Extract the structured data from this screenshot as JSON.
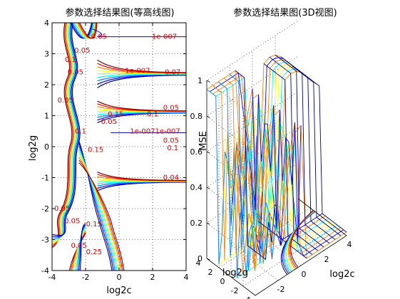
{
  "figure": {
    "left_title": "参数选择结果图(等高线图)",
    "right_title": "参数选择结果图(3D视图)"
  },
  "chart_data": [
    {
      "type": "contour",
      "title": "参数选择结果图(等高线图)",
      "xlabel": "log2c",
      "ylabel": "log2g",
      "xlim": [
        -4,
        4
      ],
      "ylim": [
        -4,
        4
      ],
      "xticks": [
        "-4",
        "-2",
        "0",
        "2",
        "4"
      ],
      "yticks": [
        "4",
        "3",
        "2",
        "1",
        "0",
        "-1",
        "-2",
        "-3",
        "-4"
      ],
      "grid": true,
      "colormap": [
        "#00008f",
        "#0000ff",
        "#0080ff",
        "#00ffff",
        "#80ff80",
        "#ffff00",
        "#ff8000",
        "#ff0000",
        "#800000"
      ],
      "level_labels": [
        {
          "text": "1e-007",
          "x": 2.7,
          "y": 3.55
        },
        {
          "text": "0.05",
          "x": -1.2,
          "y": 3.55
        },
        {
          "text": "0.05",
          "x": -2.2,
          "y": 3.1
        },
        {
          "text": "0.1",
          "x": -2.9,
          "y": 2.8
        },
        {
          "text": "1e-007",
          "x": 1.1,
          "y": 2.45
        },
        {
          "text": "0.07",
          "x": 3.2,
          "y": 2.4
        },
        {
          "text": "0.05",
          "x": -2.6,
          "y": 2.4
        },
        {
          "text": "0.05",
          "x": -3.2,
          "y": 1.5
        },
        {
          "text": "0.05",
          "x": 3.1,
          "y": 1.25
        },
        {
          "text": "0.15",
          "x": -0.2,
          "y": 1.05
        },
        {
          "text": "0.1",
          "x": 2.0,
          "y": 1.05
        },
        {
          "text": "0.05",
          "x": -0.6,
          "y": 0.8
        },
        {
          "text": "1e-007",
          "x": 1.4,
          "y": 0.5
        },
        {
          "text": "1e-007",
          "x": 2.9,
          "y": 0.5
        },
        {
          "text": "0.05",
          "x": 3.1,
          "y": 0.2
        },
        {
          "text": "0.1",
          "x": 3.2,
          "y": -0.05
        },
        {
          "text": "0.15",
          "x": -1.4,
          "y": -0.1
        },
        {
          "text": "0.1",
          "x": -2.3,
          "y": 0.5
        },
        {
          "text": "0.04",
          "x": 3.1,
          "y": -1.0
        },
        {
          "text": "0.05",
          "x": -2.8,
          "y": -2.4
        },
        {
          "text": "0.05",
          "x": -3.4,
          "y": -2.0
        },
        {
          "text": "0.15",
          "x": -1.5,
          "y": -2.5
        },
        {
          "text": "0.25",
          "x": -1.5,
          "y": -3.4
        },
        {
          "text": "0.05",
          "x": -2.4,
          "y": -3.2
        }
      ]
    },
    {
      "type": "surface",
      "title": "参数选择结果图(3D视图)",
      "xlabel": "log2c",
      "ylabel": "log2g",
      "zlabel": "MSE",
      "xlim": [
        -4,
        4
      ],
      "ylim": [
        -4,
        4
      ],
      "zlim": [
        0,
        1
      ],
      "xticks": [
        "-4",
        "-2",
        "0",
        "2",
        "4"
      ],
      "yticks": [
        "-4",
        "-2",
        "0",
        "2",
        "4"
      ],
      "zticks": [
        "0",
        "0.2",
        "0.4",
        "0.6",
        "0.8",
        "1"
      ],
      "grid": true
    }
  ]
}
